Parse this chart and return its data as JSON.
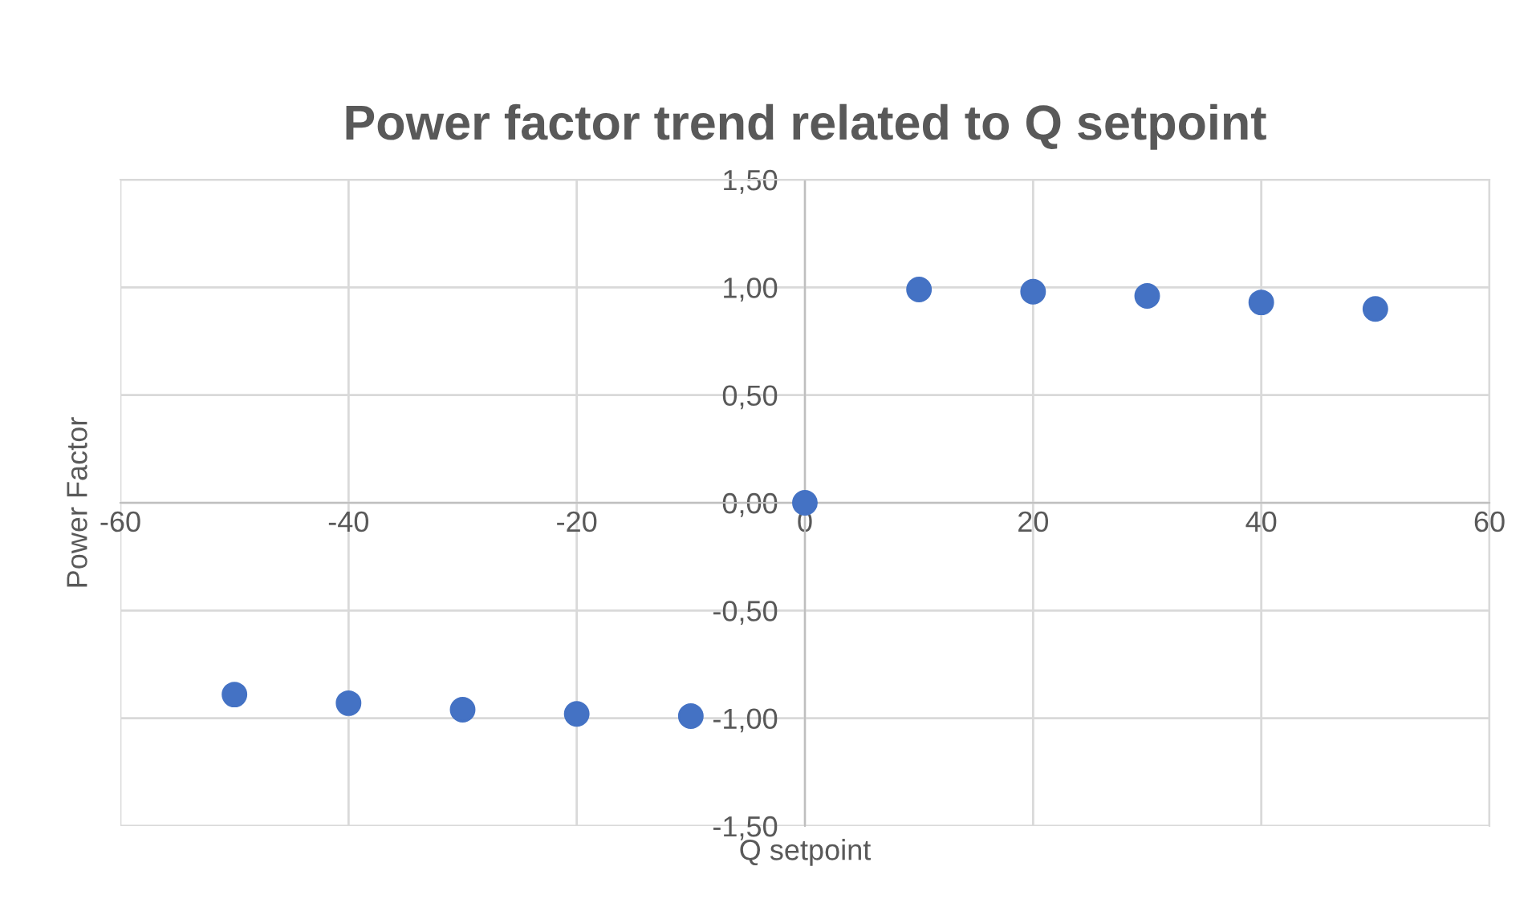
{
  "chart_data": {
    "type": "scatter",
    "title": "Power factor trend related to Q setpoint",
    "xlabel": "Q setpoint",
    "ylabel": "Power Factor",
    "x": [
      -50,
      -40,
      -30,
      -20,
      -10,
      0,
      10,
      20,
      30,
      40,
      50
    ],
    "series": [
      {
        "color": "#4472c4",
        "values": [
          -0.89,
          -0.93,
          -0.96,
          -0.98,
          -0.99,
          0,
          0.99,
          0.98,
          0.96,
          0.93,
          0.9
        ]
      }
    ],
    "xlim": [
      -60,
      60
    ],
    "xticks": [
      -60,
      -40,
      -20,
      0,
      20,
      40,
      60
    ],
    "ylim": [
      -1.5,
      1.5
    ],
    "yticks": [
      {
        "value": -1.5,
        "label": "-1,50"
      },
      {
        "value": -1.0,
        "label": "-1,00"
      },
      {
        "value": -0.5,
        "label": "-0,50"
      },
      {
        "value": 0,
        "label": "0,00"
      },
      {
        "value": 0.5,
        "label": "0,50"
      },
      {
        "value": 1.0,
        "label": "1,00"
      },
      {
        "value": 1.5,
        "label": "1,50"
      }
    ],
    "grid": true,
    "marker": "circle",
    "legend": false
  }
}
